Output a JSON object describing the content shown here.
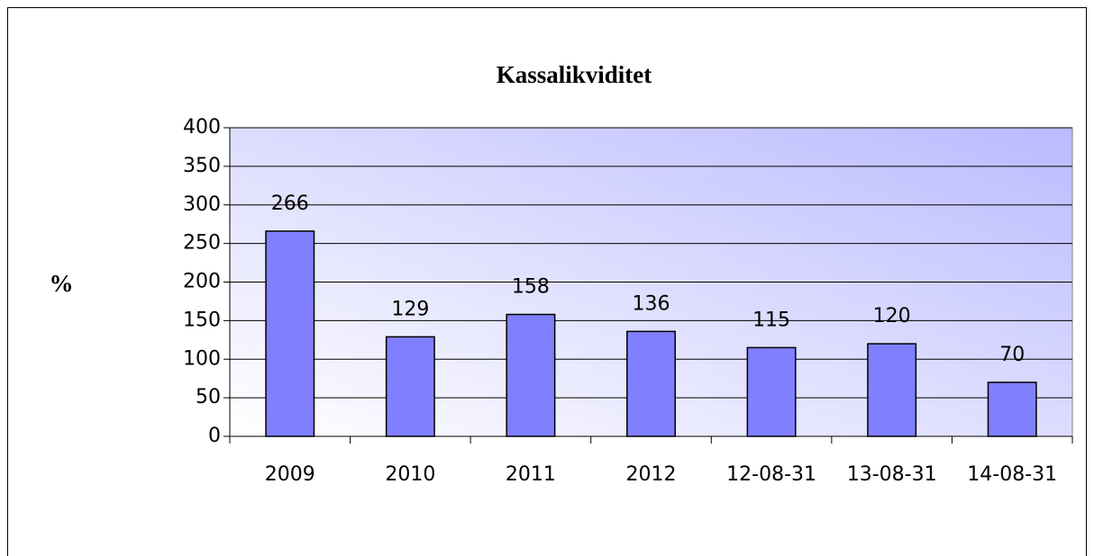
{
  "chart_data": {
    "type": "bar",
    "title": "Kassalikviditet",
    "y_label": "%",
    "categories": [
      "2009",
      "2010",
      "2011",
      "2012",
      "12-08-31",
      "13-08-31",
      "14-08-31"
    ],
    "values": [
      266,
      129,
      158,
      136,
      115,
      120,
      70
    ],
    "color": "#8080ff",
    "ylim": [
      0,
      400
    ],
    "yticks": [
      0,
      50,
      100,
      150,
      200,
      250,
      300,
      350,
      400
    ],
    "grid": true
  }
}
